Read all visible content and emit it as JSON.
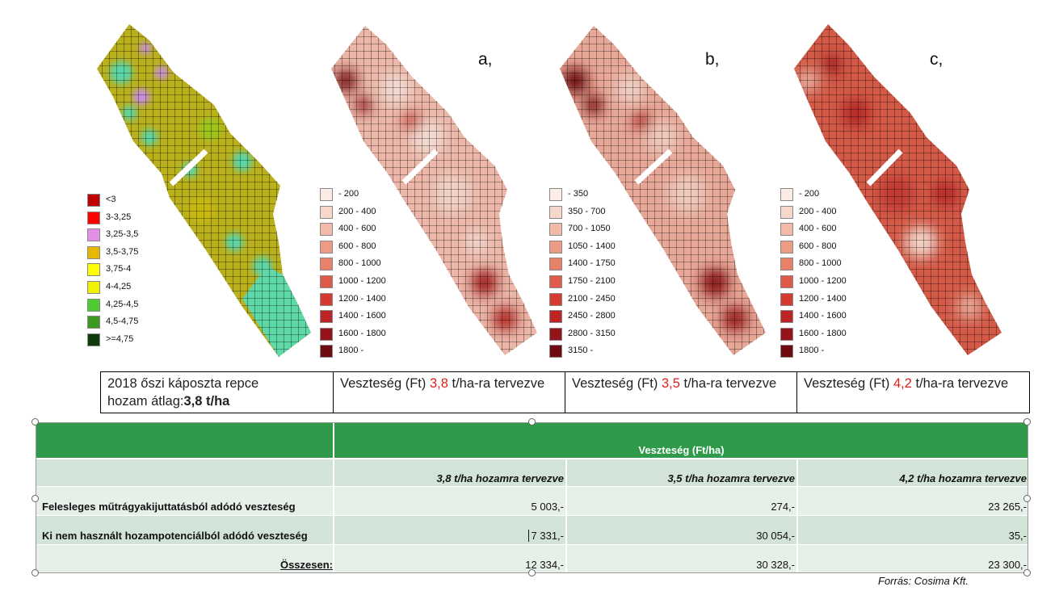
{
  "panel_letters": [
    "a,",
    "b,",
    "c,"
  ],
  "yield_legend": [
    {
      "label": "<3",
      "color": "#c00000"
    },
    {
      "label": "3-3,25",
      "color": "#ff0000"
    },
    {
      "label": "3,25-3,5",
      "color": "#e28fe6"
    },
    {
      "label": "3,5-3,75",
      "color": "#e6b800"
    },
    {
      "label": "3,75-4",
      "color": "#ffff00"
    },
    {
      "label": "4-4,25",
      "color": "#f2f200"
    },
    {
      "label": "4,25-4,5",
      "color": "#4ccc2e"
    },
    {
      "label": "4,5-4,75",
      "color": "#3c9a20"
    },
    {
      "label": ">=4,75",
      "color": "#0f3a0a"
    }
  ],
  "loss_legend_a": [
    {
      "label": "- 200",
      "color": "#fbece6"
    },
    {
      "label": "200 - 400",
      "color": "#f7d7cb"
    },
    {
      "label": "400 - 600",
      "color": "#f2bba8"
    },
    {
      "label": "600 - 800",
      "color": "#ed9b83"
    },
    {
      "label": "800 - 1000",
      "color": "#e9806a"
    },
    {
      "label": "1000 - 1200",
      "color": "#e05a4a"
    },
    {
      "label": "1200 - 1400",
      "color": "#d43a30"
    },
    {
      "label": "1400 - 1600",
      "color": "#bd2524"
    },
    {
      "label": "1600 - 1800",
      "color": "#951419"
    },
    {
      "label": "1800 -",
      "color": "#6e0a10"
    }
  ],
  "loss_legend_b": [
    {
      "label": "- 350",
      "color": "#fbece6"
    },
    {
      "label": "350 - 700",
      "color": "#f7d7cb"
    },
    {
      "label": "700 - 1050",
      "color": "#f2bba8"
    },
    {
      "label": "1050 - 1400",
      "color": "#ed9b83"
    },
    {
      "label": "1400 - 1750",
      "color": "#e9806a"
    },
    {
      "label": "1750 - 2100",
      "color": "#e05a4a"
    },
    {
      "label": "2100 - 2450",
      "color": "#d43a30"
    },
    {
      "label": "2450 - 2800",
      "color": "#bd2524"
    },
    {
      "label": "2800 - 3150",
      "color": "#951419"
    },
    {
      "label": "3150 -",
      "color": "#6e0a10"
    }
  ],
  "loss_legend_c": [
    {
      "label": "- 200",
      "color": "#fbece6"
    },
    {
      "label": "200 - 400",
      "color": "#f7d7cb"
    },
    {
      "label": "400 - 600",
      "color": "#f2bba8"
    },
    {
      "label": "600 - 800",
      "color": "#ed9b83"
    },
    {
      "label": "800 - 1000",
      "color": "#e9806a"
    },
    {
      "label": "1000 - 1200",
      "color": "#e05a4a"
    },
    {
      "label": "1200 - 1400",
      "color": "#d43a30"
    },
    {
      "label": "1400 - 1600",
      "color": "#bd2524"
    },
    {
      "label": "1600 - 1800",
      "color": "#951419"
    },
    {
      "label": "1800 -",
      "color": "#6e0a10"
    }
  ],
  "captions": {
    "first_line1": "2018 őszi káposzta repce",
    "first_line2_prefix": "hozam átlag:",
    "first_line2_bold": "3,8 t/ha",
    "loss_prefix": "Veszteség (Ft) ",
    "loss_suffix": " t/ha-ra tervezve",
    "values": [
      "3,8",
      "3,5",
      "4,2"
    ]
  },
  "table": {
    "header": "Veszteség (Ft/ha)",
    "columns": [
      "3,8 t/ha hozamra tervezve",
      "3,5 t/ha hozamra tervezve",
      "4,2 t/ha hozamra tervezve"
    ],
    "rows": [
      {
        "label": "Felesleges műtrágyakijuttatásból adódó veszteség",
        "values": [
          "5 003,-",
          "274,-",
          "23 265,-"
        ]
      },
      {
        "label": "Ki nem használt hozampotenciálból adódó veszteség",
        "values": [
          "7 331,-",
          "30 054,-",
          "35,-"
        ]
      },
      {
        "label": "Összesen:",
        "values": [
          "12 334,-",
          "30 328,-",
          "23 300,-"
        ]
      }
    ],
    "colors": {
      "header": "#2e9a4a",
      "light": "#e6efe8",
      "mid": "#d2e3d7"
    }
  },
  "source": "Forrás: Cosima Kft.",
  "map_colors": {
    "yield_base": "#b8b01a",
    "yield_cyan": "#5ad6a8",
    "yield_pink": "#c88ee6",
    "loss_base": "#ebb2a4",
    "loss_dark": "#8a1a1c",
    "loss_c_base": "#cc4a3a"
  }
}
